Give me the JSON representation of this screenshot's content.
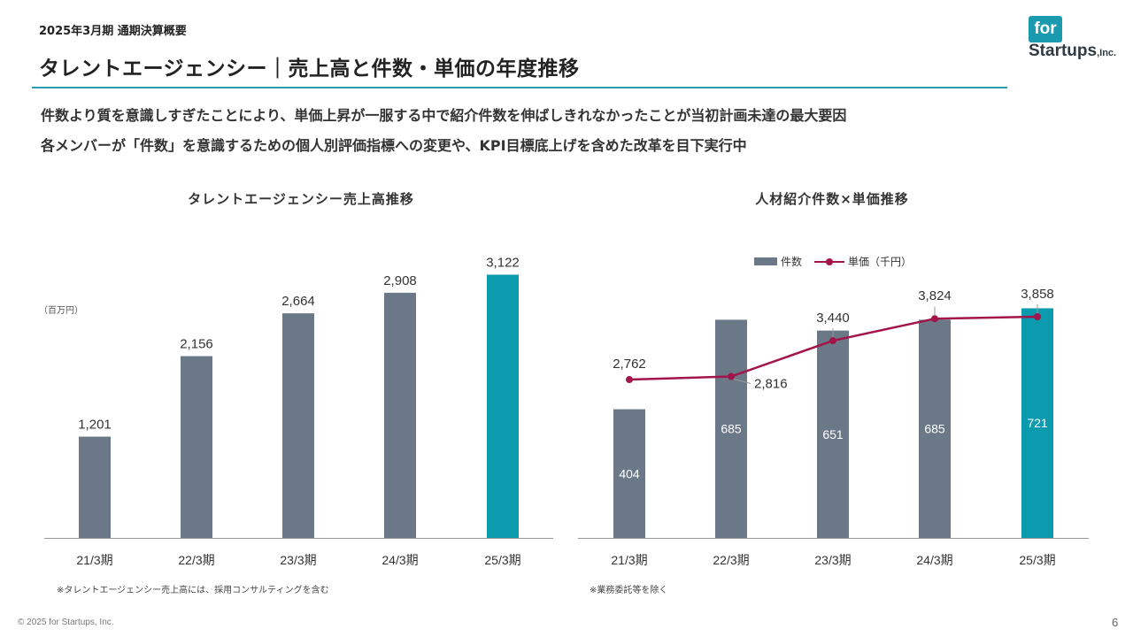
{
  "header": {
    "period": "2025年3月期 通期決算概要",
    "title": "タレントエージェンシー｜売上高と件数・単価の年度推移"
  },
  "logo": {
    "box_text": "for",
    "word": "Startups",
    "suffix": ",Inc."
  },
  "lead": {
    "line1": "件数より質を意識しすぎたことにより、単価上昇が一服する中で紹介件数を伸ばしきれなかったことが当初計画未達の最大要因",
    "line2": "各メンバーが「件数」を意識するための個人別評価指標への変更や、KPI目標底上げを含めた改革を目下実行中"
  },
  "chart_data": [
    {
      "type": "bar",
      "title": "タレントエージェンシー売上高推移",
      "unit_label": "（百万円）",
      "categories": [
        "21/3期",
        "22/3期",
        "23/3期",
        "24/3期",
        "25/3期"
      ],
      "values": [
        1201,
        2156,
        2664,
        2908,
        3122
      ],
      "value_labels": [
        "1,201",
        "2,156",
        "2,664",
        "2,908",
        "3,122"
      ],
      "colors": [
        "#6b7887",
        "#6b7887",
        "#6b7887",
        "#6b7887",
        "#0b9aae"
      ],
      "ylim": [
        0,
        3400
      ],
      "note": "※タレントエージェンシー売上高には、採用コンサルティングを含む"
    },
    {
      "type": "bar+line",
      "title": "人材紹介件数×単価推移",
      "categories": [
        "21/3期",
        "22/3期",
        "23/3期",
        "24/3期",
        "25/3期"
      ],
      "series": [
        {
          "name": "件数",
          "type": "bar",
          "values": [
            404,
            685,
            651,
            685,
            721
          ],
          "value_labels": [
            "404",
            "685",
            "651",
            "685",
            "721"
          ],
          "colors": [
            "#6b7887",
            "#6b7887",
            "#6b7887",
            "#6b7887",
            "#0b9aae"
          ],
          "ylim": [
            0,
            900
          ]
        },
        {
          "name": "単価（千円）",
          "type": "line",
          "values": [
            2762,
            2816,
            3440,
            3824,
            3858
          ],
          "value_labels": [
            "2,762",
            "2,816",
            "3,440",
            "3,824",
            "3,858"
          ],
          "color": "#a3154a",
          "ylim": [
            0,
            5000
          ]
        }
      ],
      "note": "※業務委託等を除く"
    }
  ],
  "footer": {
    "copyright": "© 2025 for Startups, Inc.",
    "page": "6"
  }
}
